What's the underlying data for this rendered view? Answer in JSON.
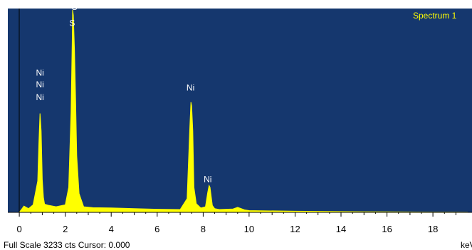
{
  "chart_data": {
    "type": "area",
    "title": "Spectrum 1",
    "xlabel": "keV",
    "xlim": [
      -0.5,
      19.7
    ],
    "ylim": [
      0,
      3233
    ],
    "x_ticks": [
      0,
      2,
      4,
      6,
      8,
      10,
      12,
      14,
      16,
      18
    ],
    "series": [
      {
        "name": "Spectrum 1",
        "x": [
          0,
          0.2,
          0.4,
          0.6,
          0.8,
          0.85,
          0.9,
          0.95,
          1.0,
          1.05,
          1.1,
          1.3,
          1.6,
          2.0,
          2.15,
          2.25,
          2.3,
          2.32,
          2.35,
          2.4,
          2.45,
          2.5,
          2.6,
          2.8,
          3.2,
          4,
          5,
          6,
          7,
          7.3,
          7.42,
          7.47,
          7.5,
          7.55,
          7.6,
          7.7,
          7.9,
          8.1,
          8.2,
          8.26,
          8.3,
          8.35,
          8.4,
          8.5,
          8.7,
          9.3,
          9.5,
          9.8,
          10,
          12,
          14,
          16,
          18,
          19.5
        ],
        "y": [
          0,
          100,
          60,
          120,
          500,
          1100,
          1580,
          1300,
          520,
          240,
          130,
          110,
          90,
          120,
          400,
          1600,
          2700,
          3233,
          3150,
          2600,
          1800,
          900,
          300,
          90,
          75,
          70,
          60,
          50,
          45,
          220,
          1350,
          1760,
          1700,
          1300,
          400,
          140,
          70,
          90,
          320,
          430,
          400,
          250,
          110,
          60,
          45,
          55,
          80,
          40,
          28,
          18,
          12,
          8,
          5,
          3
        ]
      }
    ],
    "annotations": [
      {
        "label": "S",
        "x": 2.4,
        "y": 3233
      },
      {
        "label": "S",
        "x": 2.3,
        "y": 2980
      },
      {
        "label": "Ni",
        "x": 0.9,
        "y": 2185
      },
      {
        "label": "Ni",
        "x": 0.9,
        "y": 1995
      },
      {
        "label": "Ni",
        "x": 0.9,
        "y": 1795
      },
      {
        "label": "Ni",
        "x": 7.45,
        "y": 1945
      },
      {
        "label": "Ni",
        "x": 8.2,
        "y": 480
      }
    ],
    "colors": {
      "plot_background": "#15376e",
      "spectrum": "#ffff00",
      "labels": "#ffffff",
      "title": "#ffff00"
    },
    "grid": false
  },
  "footer": {
    "left_text": "Full Scale 3233 cts Cursor: 0.000",
    "right_text": "keV"
  }
}
